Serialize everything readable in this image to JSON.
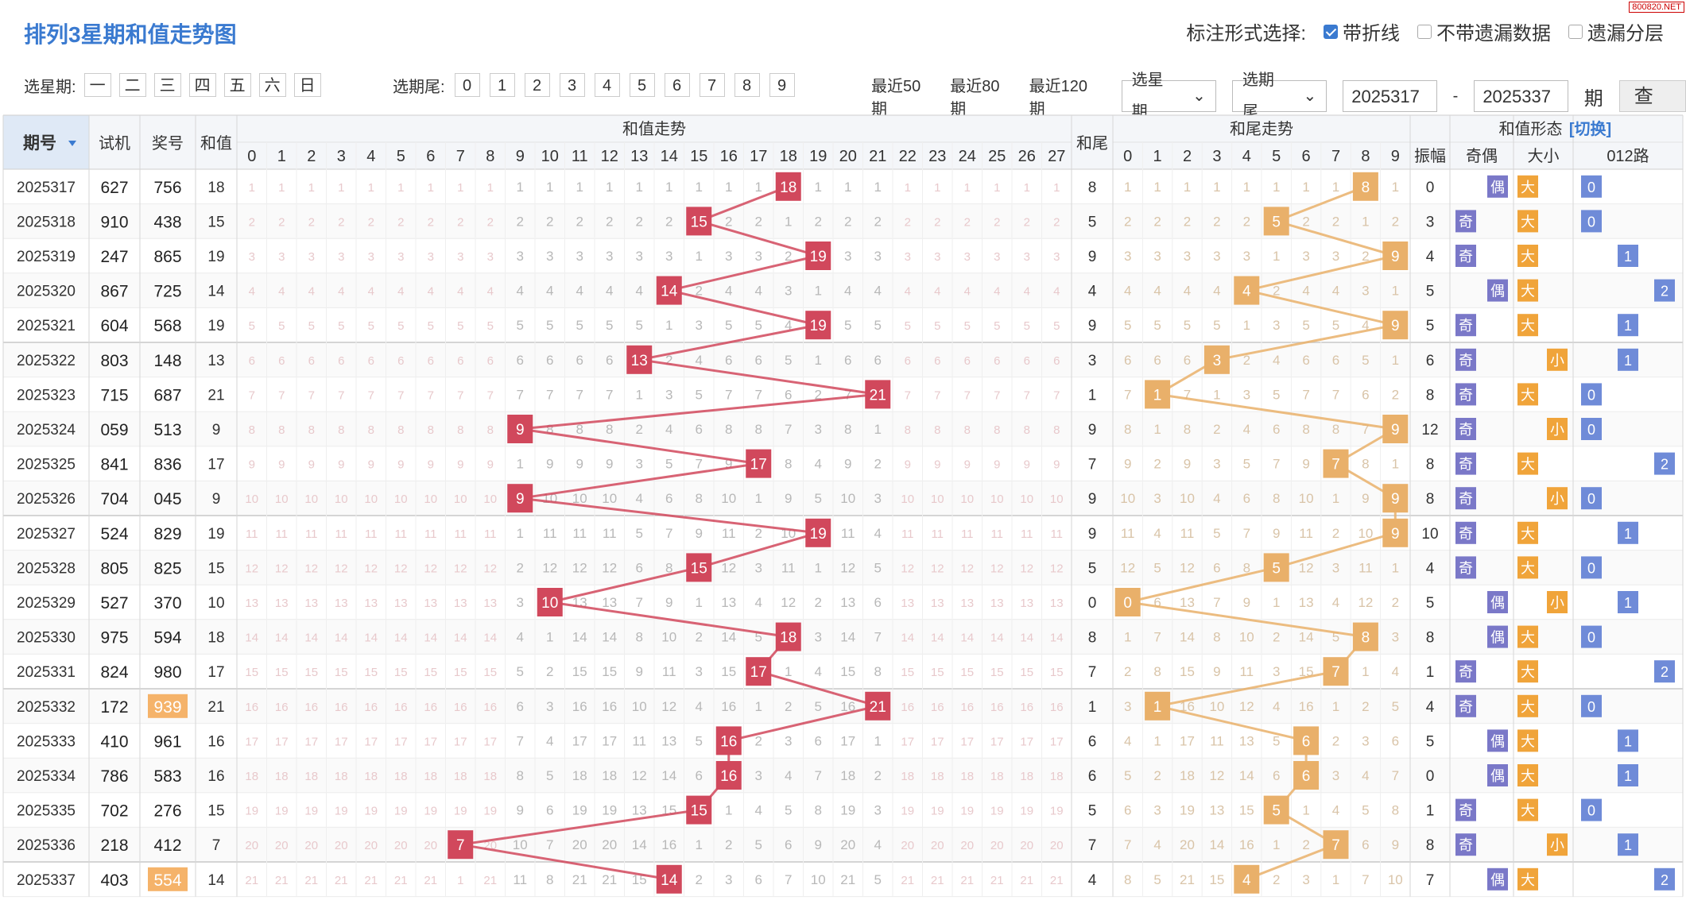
{
  "title": "排列3星期和值走势图",
  "watermark": "800820.NET",
  "options": {
    "label": "标注形式选择:",
    "items": [
      {
        "label": "带折线",
        "checked": true
      },
      {
        "label": "不带遗漏数据",
        "checked": false
      },
      {
        "label": "遗漏分层",
        "checked": false
      }
    ]
  },
  "toolbar": {
    "week_label": "选星期:",
    "weekdays": [
      "一",
      "二",
      "三",
      "四",
      "五",
      "六",
      "日"
    ],
    "tail_label": "选期尾:",
    "tails": [
      "0",
      "1",
      "2",
      "3",
      "4",
      "5",
      "6",
      "7",
      "8",
      "9"
    ],
    "recent": [
      "最近50期",
      "最近80期",
      "最近120期"
    ],
    "week_select": "选星期",
    "tail_select": "选期尾",
    "from": "2025317",
    "dash": "-",
    "to": "2025337",
    "period_label": "期",
    "query": "查看"
  },
  "table": {
    "headers": {
      "issue": "期号",
      "test": "试机",
      "prize": "奖号",
      "sum": "和值",
      "sum_trend": "和值走势",
      "sum_tail": "和尾",
      "tail_trend": "和尾走势",
      "form": "和值形态",
      "switch": "[切换]",
      "amp": "振幅",
      "oddeven": "奇偶",
      "bigsmall": "大小",
      "route": "012路"
    },
    "sum_cols": [
      "0",
      "1",
      "2",
      "3",
      "4",
      "5",
      "6",
      "7",
      "8",
      "9",
      "10",
      "11",
      "12",
      "13",
      "14",
      "15",
      "16",
      "17",
      "18",
      "19",
      "20",
      "21",
      "22",
      "23",
      "24",
      "25",
      "26",
      "27"
    ],
    "tail_cols": [
      "0",
      "1",
      "2",
      "3",
      "4",
      "5",
      "6",
      "7",
      "8",
      "9"
    ],
    "labels": {
      "odd": "奇",
      "even": "偶",
      "big": "大",
      "small": "小"
    },
    "colors": {
      "sum_hit": "#d1485c",
      "tail_hit": "#e9b06a",
      "route_hit": "#6f8bd8",
      "odd": "#7a78c8",
      "big": "#f0a43a",
      "prize_hl": "#f5b36a",
      "title": "#3a7ad0"
    },
    "rows": [
      {
        "issue": "2025317",
        "test": "627",
        "prize": "756",
        "sum": 18,
        "tail": 8,
        "amp": 0,
        "oe": "偶",
        "bs": "大",
        "route": 0
      },
      {
        "issue": "2025318",
        "test": "910",
        "prize": "438",
        "sum": 15,
        "tail": 5,
        "amp": 3,
        "oe": "奇",
        "bs": "大",
        "route": 0
      },
      {
        "issue": "2025319",
        "test": "247",
        "prize": "865",
        "sum": 19,
        "tail": 9,
        "amp": 4,
        "oe": "奇",
        "bs": "大",
        "route": 1
      },
      {
        "issue": "2025320",
        "test": "867",
        "prize": "725",
        "sum": 14,
        "tail": 4,
        "amp": 5,
        "oe": "偶",
        "bs": "大",
        "route": 2
      },
      {
        "issue": "2025321",
        "test": "604",
        "prize": "568",
        "sum": 19,
        "tail": 9,
        "amp": 5,
        "oe": "奇",
        "bs": "大",
        "route": 1
      },
      {
        "issue": "2025322",
        "test": "803",
        "prize": "148",
        "sum": 13,
        "tail": 3,
        "amp": 6,
        "oe": "奇",
        "bs": "小",
        "route": 1
      },
      {
        "issue": "2025323",
        "test": "715",
        "prize": "687",
        "sum": 21,
        "tail": 1,
        "amp": 8,
        "oe": "奇",
        "bs": "大",
        "route": 0
      },
      {
        "issue": "2025324",
        "test": "059",
        "prize": "513",
        "sum": 9,
        "tail": 9,
        "amp": 12,
        "oe": "奇",
        "bs": "小",
        "route": 0
      },
      {
        "issue": "2025325",
        "test": "841",
        "prize": "836",
        "sum": 17,
        "tail": 7,
        "amp": 8,
        "oe": "奇",
        "bs": "大",
        "route": 2
      },
      {
        "issue": "2025326",
        "test": "704",
        "prize": "045",
        "sum": 9,
        "tail": 9,
        "amp": 8,
        "oe": "奇",
        "bs": "小",
        "route": 0
      },
      {
        "issue": "2025327",
        "test": "524",
        "prize": "829",
        "sum": 19,
        "tail": 9,
        "amp": 10,
        "oe": "奇",
        "bs": "大",
        "route": 1
      },
      {
        "issue": "2025328",
        "test": "805",
        "prize": "825",
        "sum": 15,
        "tail": 5,
        "amp": 4,
        "oe": "奇",
        "bs": "大",
        "route": 0
      },
      {
        "issue": "2025329",
        "test": "527",
        "prize": "370",
        "sum": 10,
        "tail": 0,
        "amp": 5,
        "oe": "偶",
        "bs": "小",
        "route": 1
      },
      {
        "issue": "2025330",
        "test": "975",
        "prize": "594",
        "sum": 18,
        "tail": 8,
        "amp": 8,
        "oe": "偶",
        "bs": "大",
        "route": 0
      },
      {
        "issue": "2025331",
        "test": "824",
        "prize": "980",
        "sum": 17,
        "tail": 7,
        "amp": 1,
        "oe": "奇",
        "bs": "大",
        "route": 2
      },
      {
        "issue": "2025332",
        "test": "172",
        "prize": "939",
        "sum": 21,
        "tail": 1,
        "amp": 4,
        "oe": "奇",
        "bs": "大",
        "route": 0,
        "hl": true
      },
      {
        "issue": "2025333",
        "test": "410",
        "prize": "961",
        "sum": 16,
        "tail": 6,
        "amp": 5,
        "oe": "偶",
        "bs": "大",
        "route": 1
      },
      {
        "issue": "2025334",
        "test": "786",
        "prize": "583",
        "sum": 16,
        "tail": 6,
        "amp": 0,
        "oe": "偶",
        "bs": "大",
        "route": 1
      },
      {
        "issue": "2025335",
        "test": "702",
        "prize": "276",
        "sum": 15,
        "tail": 5,
        "amp": 1,
        "oe": "奇",
        "bs": "大",
        "route": 0
      },
      {
        "issue": "2025336",
        "test": "218",
        "prize": "412",
        "sum": 7,
        "tail": 7,
        "amp": 8,
        "oe": "奇",
        "bs": "小",
        "route": 1
      },
      {
        "issue": "2025337",
        "test": "403",
        "prize": "554",
        "sum": 14,
        "tail": 4,
        "amp": 7,
        "oe": "偶",
        "bs": "大",
        "route": 2,
        "hl": true
      }
    ]
  }
}
